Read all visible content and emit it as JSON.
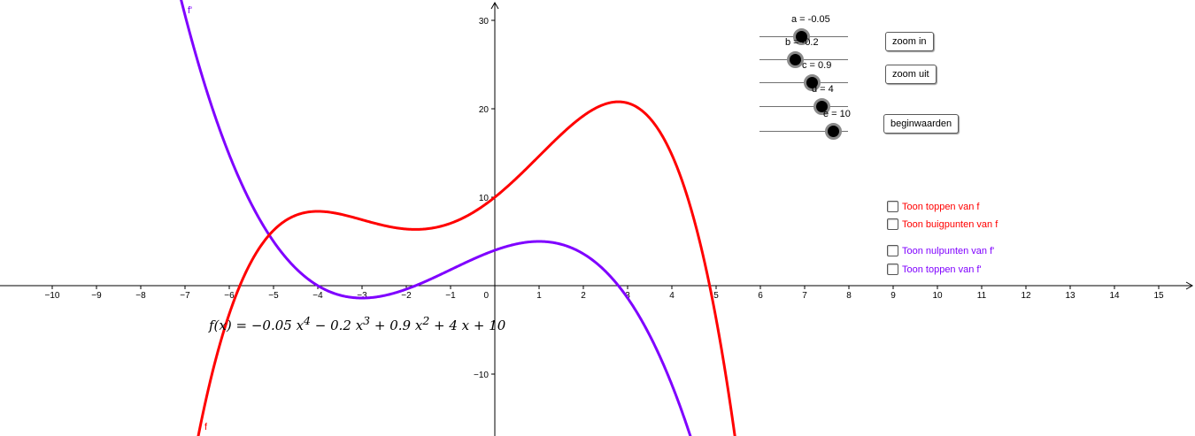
{
  "chart_data": {
    "type": "line",
    "xlim": [
      -11.1,
      15.8
    ],
    "ylim": [
      -16.8,
      32.5
    ],
    "x_ticks": [
      -10,
      -9,
      -8,
      -7,
      -6,
      -5,
      -4,
      -3,
      -2,
      -1,
      1,
      2,
      3,
      4,
      5,
      6,
      7,
      8,
      9,
      10,
      11,
      12,
      13,
      14,
      15
    ],
    "y_ticks": [
      -10,
      10,
      20,
      30
    ],
    "origin_label": "0",
    "grid": false,
    "coefficients": {
      "a": -0.05,
      "b": -0.2,
      "c": 0.9,
      "d": 4,
      "e": 10
    },
    "series": [
      {
        "name": "f",
        "color": "#ff0000"
      },
      {
        "name": "f'",
        "color": "#7f00ff"
      }
    ]
  },
  "formula": {
    "lhs": "f(x) = ",
    "terms": [
      "−0.05 x",
      "4",
      " − 0.2 x",
      "3",
      " + 0.9 x",
      "2",
      " + 4 x + 10"
    ]
  },
  "sliders": [
    {
      "label": "a = -0.05",
      "value": -0.05
    },
    {
      "label": "b = -0.2",
      "value": -0.2
    },
    {
      "label": "c = 0.9",
      "value": 0.9
    },
    {
      "label": "d = 4",
      "value": 4
    },
    {
      "label": "e = 10",
      "value": 10
    }
  ],
  "buttons": {
    "zoom_in": "zoom in",
    "zoom_out": "zoom uit",
    "reset": "beginwaarden"
  },
  "checkboxes": [
    {
      "label": "Toon toppen van f",
      "color": "#ff0000",
      "checked": false
    },
    {
      "label": "Toon buigpunten van f",
      "color": "#ff0000",
      "checked": false
    },
    {
      "label": "Toon nulpunten van f'",
      "color": "#7f00ff",
      "checked": false
    },
    {
      "label": "Toon toppen van f'",
      "color": "#7f00ff",
      "checked": false
    }
  ]
}
